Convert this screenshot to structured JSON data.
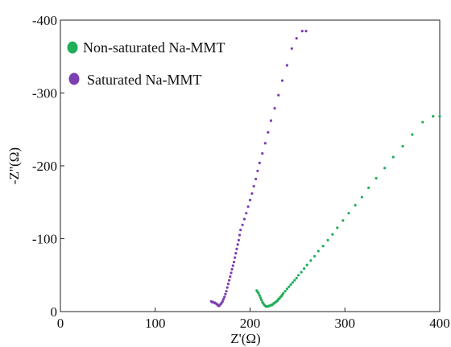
{
  "chart_data": {
    "type": "scatter",
    "title": "",
    "xlabel": "Z'(Ω)",
    "ylabel": "-Z''(Ω)",
    "xlim": [
      0,
      400
    ],
    "ylim": [
      0,
      -400
    ],
    "x_ticks": [
      "0",
      "100",
      "200",
      "300",
      "400"
    ],
    "y_ticks": [
      "0",
      "-100",
      "-200",
      "-300",
      "-400"
    ],
    "grid": false,
    "legend_position": "top-left",
    "series": [
      {
        "name": "Non-saturated Na-MMT",
        "color": "#1fae59",
        "x": [
          207,
          208,
          209,
          210,
          211,
          212,
          213,
          214,
          215,
          216,
          217,
          218,
          219,
          220,
          221,
          222,
          223,
          224,
          225,
          226,
          227,
          228,
          229,
          230,
          231,
          232,
          233,
          234,
          235,
          237,
          239,
          241,
          243,
          245,
          247,
          249,
          251,
          254,
          257,
          260,
          264,
          268,
          272,
          277,
          282,
          287,
          292,
          298,
          304,
          311,
          318,
          325,
          333,
          342,
          351,
          361,
          371,
          382,
          393,
          400
        ],
        "y": [
          -29,
          -27,
          -25,
          -22,
          -19,
          -16,
          -13,
          -11,
          -9,
          -8,
          -7,
          -7,
          -7,
          -8,
          -8,
          -9,
          -9,
          -10,
          -11,
          -12,
          -13,
          -14,
          -15,
          -17,
          -18,
          -20,
          -21,
          -23,
          -25,
          -28,
          -31,
          -34,
          -37,
          -40,
          -43,
          -46,
          -50,
          -54,
          -59,
          -64,
          -70,
          -76,
          -83,
          -90,
          -98,
          -106,
          -115,
          -125,
          -135,
          -146,
          -157,
          -170,
          -183,
          -197,
          -212,
          -227,
          -243,
          -260,
          -268,
          -268
        ]
      },
      {
        "name": "Saturated Na-MMT",
        "color": "#7b3fb0",
        "x": [
          159,
          160,
          161,
          162,
          163,
          164,
          165,
          166,
          166.5,
          167,
          167.5,
          168,
          169,
          170,
          171,
          172,
          173,
          174,
          175,
          176,
          177,
          178,
          179,
          180,
          181,
          182,
          183,
          184,
          185,
          186,
          187,
          188,
          189,
          190,
          192,
          194,
          196,
          198,
          200,
          202,
          204,
          206,
          208,
          210,
          213,
          216,
          219,
          222,
          226,
          230,
          234,
          239,
          244,
          249,
          255,
          259
        ],
        "y": [
          -14,
          -13,
          -13,
          -12,
          -12,
          -11,
          -10,
          -9,
          -8,
          -8,
          -8,
          -9,
          -10,
          -12,
          -14,
          -17,
          -20,
          -24,
          -28,
          -33,
          -38,
          -43,
          -48,
          -53,
          -58,
          -63,
          -68,
          -74,
          -80,
          -86,
          -92,
          -98,
          -105,
          -112,
          -119,
          -127,
          -135,
          -144,
          -153,
          -162,
          -172,
          -182,
          -193,
          -204,
          -217,
          -231,
          -246,
          -262,
          -279,
          -297,
          -317,
          -338,
          -361,
          -375,
          -385,
          -385
        ]
      }
    ]
  }
}
